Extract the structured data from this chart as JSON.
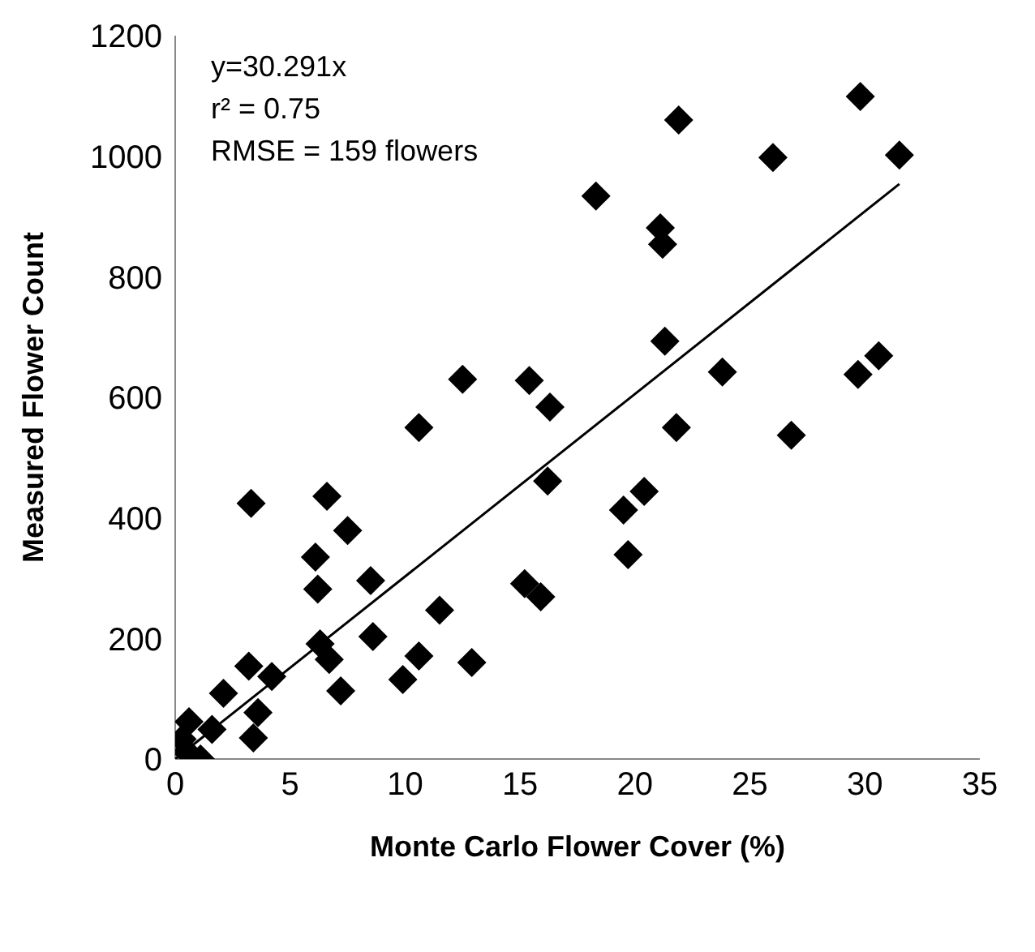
{
  "chart_data": {
    "type": "scatter",
    "xlabel": "Monte Carlo Flower Cover (%)",
    "ylabel": "Measured Flower Count",
    "annotations": [
      "y=30.291x",
      "r² = 0.75",
      "RMSE = 159 flowers"
    ],
    "xlim": [
      0,
      35
    ],
    "xticks": [
      0,
      5,
      10,
      15,
      20,
      25,
      30,
      35
    ],
    "ylim": [
      0,
      1200
    ],
    "yticks": [
      0,
      200,
      400,
      600,
      800,
      1000,
      1200
    ],
    "marker": "diamond",
    "series": [
      {
        "color": "#000000",
        "x": [
          29.8,
          21.9,
          26.0,
          31.5,
          18.3,
          21.1,
          21.2,
          21.3,
          23.8,
          29.7,
          30.6,
          12.5,
          15.4,
          16.3,
          10.6,
          21.8,
          26.8,
          16.2,
          20.4,
          19.5,
          19.7,
          3.3,
          6.6,
          7.5,
          6.1,
          6.2,
          8.5,
          15.2,
          15.9,
          11.5,
          8.6,
          6.3,
          6.7,
          10.6,
          12.9,
          9.9,
          7.2,
          3.2,
          4.2,
          2.1,
          3.6,
          3.4,
          0.6,
          1.6,
          0.3,
          1.1,
          0.5
        ],
        "values": [
          1099,
          1060,
          998,
          1002,
          934,
          881,
          854,
          693,
          642,
          638,
          669,
          630,
          628,
          584,
          550,
          550,
          537,
          461,
          444,
          413,
          339,
          424,
          436,
          379,
          335,
          282,
          296,
          291,
          269,
          247,
          203,
          191,
          165,
          171,
          160,
          132,
          113,
          154,
          137,
          109,
          77,
          35,
          62,
          49,
          33,
          0,
          12
        ]
      },
      {
        "type": "line",
        "color": "#000000",
        "marker": "none",
        "line_style": "solid",
        "x": [
          0,
          31.5
        ],
        "values": [
          0,
          954
        ]
      }
    ]
  }
}
